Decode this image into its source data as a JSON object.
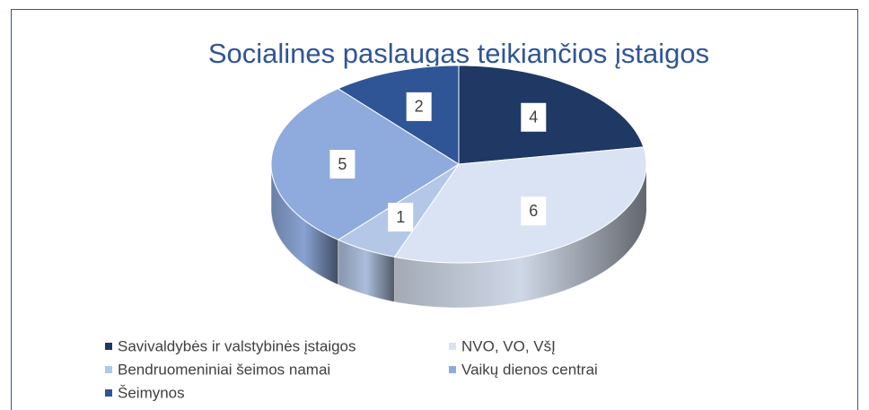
{
  "chart_data": {
    "type": "pie3d",
    "title": "Socialines paslaugas teikiančios įstaigos",
    "categories": [
      "Savivaldybės ir valstybinės įstaigos",
      "NVO, VO, VšĮ",
      "Bendruomeniniai šeimos namai",
      "Vaikų dienos centrai",
      "Šeimynos"
    ],
    "values": [
      4,
      6,
      1,
      5,
      2
    ],
    "colors": [
      "#203864",
      "#dae3f3",
      "#b4c7e7",
      "#8faadc",
      "#2f5597"
    ],
    "legend": "bottom"
  }
}
